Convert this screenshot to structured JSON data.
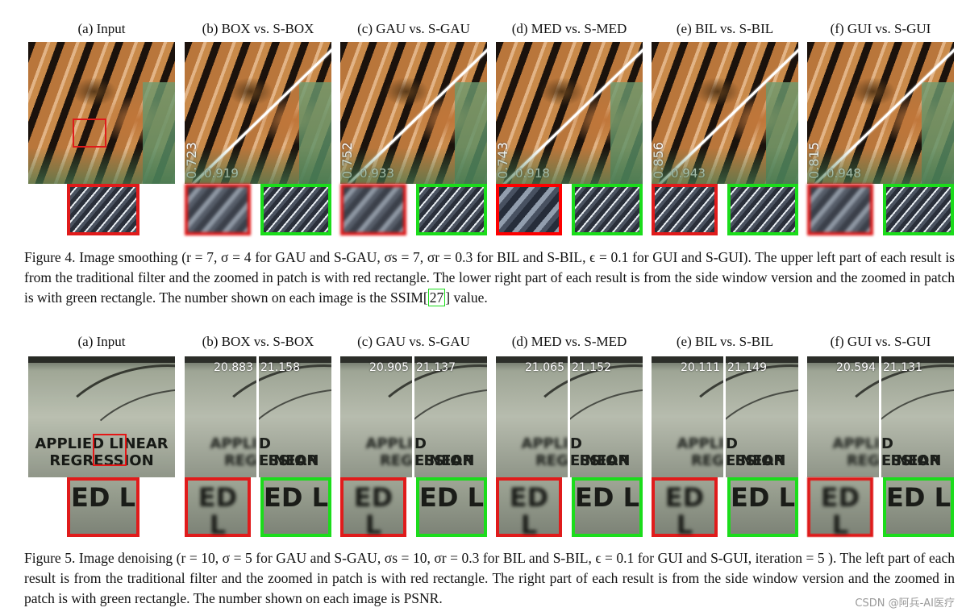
{
  "fig4": {
    "panels": [
      {
        "title": "(a)  Input"
      },
      {
        "title": "(b)  BOX vs. S-BOX",
        "ssim_trad": "0.723",
        "ssim_side": "0.919"
      },
      {
        "title": "(c)  GAU vs. S-GAU",
        "ssim_trad": "0.752",
        "ssim_side": "0.933"
      },
      {
        "title": "(d)  MED vs. S-MED",
        "ssim_trad": "0.743",
        "ssim_side": "0.918"
      },
      {
        "title": "(e)  BIL vs. S-BIL",
        "ssim_trad": "0.856",
        "ssim_side": "0.943"
      },
      {
        "title": "(f)  GUI vs. S-GUI",
        "ssim_trad": "0.815",
        "ssim_side": "0.948"
      }
    ],
    "caption_pre": "Figure 4. Image smoothing (r = 7, σ = 4 for GAU and S-GAU, σs = 7, σr = 0.3 for BIL and S-BIL, ϵ = 0.1 for GUI and S-GUI). The upper left part of each result is from the traditional filter and the zoomed in patch is with red rectangle. The lower right part of each result is from the side window version and the zoomed in patch is with green rectangle. The number shown on each image is the SSIM",
    "citation": "27",
    "caption_post": " value."
  },
  "fig5": {
    "panels": [
      {
        "title": "(a)  Input"
      },
      {
        "title": "(b)  BOX vs. S-BOX",
        "psnr_trad": "20.883",
        "psnr_side": "21.158"
      },
      {
        "title": "(c)  GAU vs. S-GAU",
        "psnr_trad": "20.905",
        "psnr_side": "21.137"
      },
      {
        "title": "(d)  MED vs. S-MED",
        "psnr_trad": "21.065",
        "psnr_side": "21.152"
      },
      {
        "title": "(e)  BIL vs. S-BIL",
        "psnr_trad": "20.111",
        "psnr_side": "21.149"
      },
      {
        "title": "(f)  GUI vs. S-GUI",
        "psnr_trad": "20.594",
        "psnr_side": "21.131"
      }
    ],
    "book_line1": "APPLIED LINEAR",
    "book_line2": "REGRESSION",
    "book_trad_line1": "APPLI",
    "book_side_line1": "D LINEAR",
    "book_trad_line2": "REG",
    "book_side_line2": "ESSION",
    "zoom_text": "ED L",
    "caption": "Figure 5. Image denoising (r = 10, σ = 5 for GAU and S-GAU, σs = 10, σr = 0.3 for BIL and S-BIL, ϵ = 0.1 for GUI and S-GUI, iteration = 5 ). The left part of each result is from the traditional filter and the zoomed in patch is with red rectangle. The right part of each result is from the side window version and the zoomed in patch is with green rectangle. The number shown on each image is PSNR."
  },
  "watermark": "CSDN @阿兵-AI医疗"
}
